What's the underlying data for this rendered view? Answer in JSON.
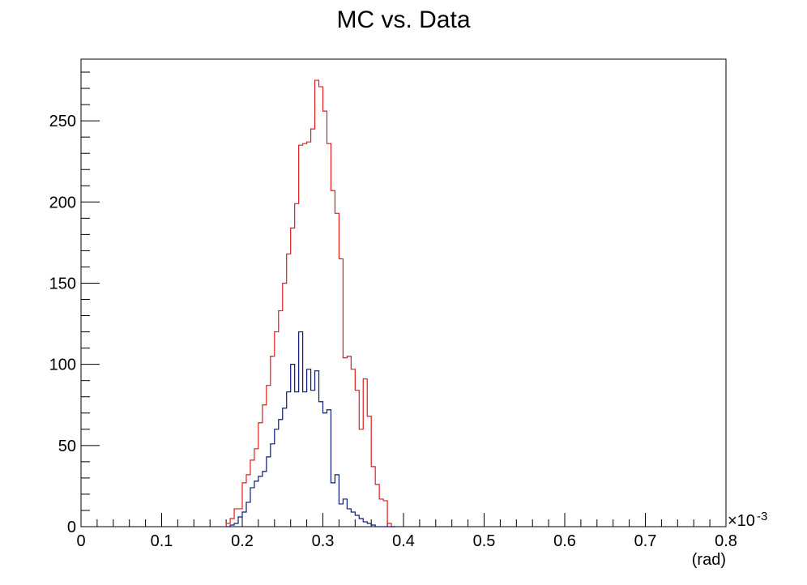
{
  "chart_data": {
    "type": "histogram",
    "title": "MC vs. Data",
    "xlabel": "(rad)",
    "x_multiplier_label": "×10",
    "x_multiplier_exp": "-3",
    "xlim": [
      0,
      0.8
    ],
    "ylim": [
      0,
      288
    ],
    "x_ticks": [
      "0",
      "0.1",
      "0.2",
      "0.3",
      "0.4",
      "0.5",
      "0.6",
      "0.7",
      "0.8"
    ],
    "y_ticks": [
      "0",
      "50",
      "100",
      "150",
      "200",
      "250"
    ],
    "bin_width": 0.005,
    "bin_start": 0.18,
    "series": [
      {
        "color": "#e31a1c",
        "values": [
          2,
          5,
          11,
          11,
          27,
          32,
          41,
          48,
          64,
          75,
          87,
          105,
          120,
          133,
          150,
          168,
          184,
          199,
          235,
          236,
          237,
          245,
          275,
          271,
          256,
          236,
          207,
          193,
          165,
          104,
          105,
          97,
          84,
          60,
          91,
          68,
          37,
          26,
          17,
          16,
          2,
          0
        ]
      },
      {
        "color": "#0b1a7a",
        "values": [
          0,
          1,
          2,
          6,
          9,
          15,
          24,
          28,
          31,
          34,
          43,
          51,
          60,
          66,
          73,
          83,
          100,
          83,
          120,
          83,
          97,
          84,
          96,
          77,
          70,
          72,
          27,
          32,
          14,
          17,
          11,
          9,
          7,
          5,
          3,
          2,
          1,
          0,
          0,
          0,
          0,
          0
        ]
      }
    ]
  }
}
